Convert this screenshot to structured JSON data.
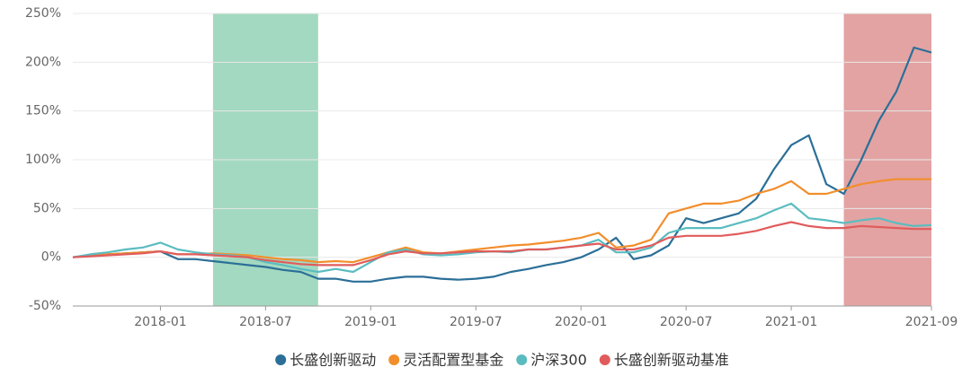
{
  "chart_data": {
    "type": "line",
    "x": [
      "2017-08",
      "2017-09",
      "2017-10",
      "2017-11",
      "2017-12",
      "2018-01",
      "2018-02",
      "2018-03",
      "2018-04",
      "2018-05",
      "2018-06",
      "2018-07",
      "2018-08",
      "2018-09",
      "2018-10",
      "2018-11",
      "2018-12",
      "2019-01",
      "2019-02",
      "2019-03",
      "2019-04",
      "2019-05",
      "2019-06",
      "2019-07",
      "2019-08",
      "2019-09",
      "2019-10",
      "2019-11",
      "2019-12",
      "2020-01",
      "2020-02",
      "2020-03",
      "2020-04",
      "2020-05",
      "2020-06",
      "2020-07",
      "2020-08",
      "2020-09",
      "2020-10",
      "2020-11",
      "2020-12",
      "2021-01",
      "2021-02",
      "2021-03",
      "2021-04",
      "2021-05",
      "2021-06",
      "2021-07",
      "2021-08",
      "2021-09"
    ],
    "series": [
      {
        "name": "长盛创新驱动",
        "color": "#2b6f98",
        "values": [
          0,
          2,
          3,
          4,
          5,
          6,
          -2,
          -2,
          -4,
          -6,
          -8,
          -10,
          -13,
          -15,
          -22,
          -22,
          -25,
          -25,
          -22,
          -20,
          -20,
          -22,
          -23,
          -22,
          -20,
          -15,
          -12,
          -8,
          -5,
          0,
          8,
          20,
          -2,
          2,
          12,
          40,
          35,
          40,
          45,
          60,
          90,
          115,
          125,
          75,
          65,
          100,
          140,
          170,
          215,
          210
        ]
      },
      {
        "name": "灵活配置型基金",
        "color": "#f28e2b",
        "values": [
          0,
          2,
          3,
          4,
          5,
          6,
          3,
          3,
          4,
          3,
          2,
          0,
          -2,
          -3,
          -5,
          -4,
          -5,
          0,
          5,
          10,
          5,
          4,
          6,
          8,
          10,
          12,
          13,
          15,
          17,
          20,
          25,
          10,
          12,
          18,
          45,
          50,
          55,
          55,
          58,
          65,
          70,
          78,
          65,
          65,
          70,
          75,
          78,
          80,
          80,
          80
        ]
      },
      {
        "name": "沪深300",
        "color": "#5bbcc0",
        "values": [
          0,
          3,
          5,
          8,
          10,
          15,
          8,
          5,
          3,
          2,
          0,
          -5,
          -8,
          -12,
          -15,
          -12,
          -15,
          -5,
          5,
          8,
          3,
          2,
          3,
          5,
          6,
          5,
          8,
          8,
          10,
          12,
          18,
          5,
          5,
          10,
          25,
          30,
          30,
          30,
          35,
          40,
          48,
          55,
          40,
          38,
          35,
          38,
          40,
          35,
          32,
          33
        ]
      },
      {
        "name": "长盛创新驱动基准",
        "color": "#e05c5c",
        "values": [
          0,
          1,
          2,
          3,
          4,
          6,
          3,
          3,
          2,
          1,
          0,
          -3,
          -5,
          -7,
          -8,
          -8,
          -8,
          -3,
          3,
          6,
          4,
          4,
          5,
          6,
          6,
          6,
          8,
          8,
          10,
          12,
          14,
          8,
          8,
          12,
          20,
          22,
          22,
          22,
          24,
          27,
          32,
          36,
          32,
          30,
          30,
          32,
          31,
          30,
          29,
          29
        ]
      }
    ],
    "xlim": [
      "2017-08",
      "2021-09"
    ],
    "xticks": [
      "2018-01",
      "2018-07",
      "2019-01",
      "2019-07",
      "2020-01",
      "2020-07",
      "2021-01",
      "2021-09"
    ],
    "ylim": [
      -50,
      250
    ],
    "yticks": [
      {
        "value": -50,
        "label": "-50%"
      },
      {
        "value": 0,
        "label": "0%"
      },
      {
        "value": 50,
        "label": "50%"
      },
      {
        "value": 100,
        "label": "100%"
      },
      {
        "value": 150,
        "label": "150%"
      },
      {
        "value": 200,
        "label": "200%"
      },
      {
        "value": 250,
        "label": "250%"
      }
    ],
    "bands": [
      {
        "from": "2018-04",
        "to": "2018-10",
        "color": "#a3d9c0"
      },
      {
        "from": "2021-04",
        "to": "2021-09",
        "color": "#e3a3a3"
      }
    ],
    "grid": true,
    "legend": "bottom"
  }
}
